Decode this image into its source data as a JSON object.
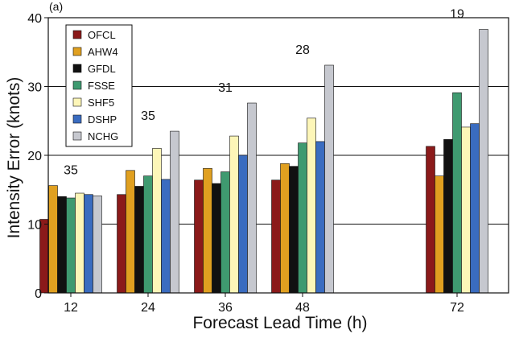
{
  "chart_data": {
    "type": "bar",
    "panel_label": "(a)",
    "title": "",
    "xlabel": "Forecast Lead Time (h)",
    "ylabel": "Intensity Error (knots)",
    "ylim": [
      0,
      40
    ],
    "yticks": [
      0,
      10,
      20,
      30,
      40
    ],
    "grid": "horizontal",
    "legend_position": "top-left",
    "categories": [
      "12",
      "24",
      "36",
      "48",
      "72"
    ],
    "x_positions": [
      12,
      24,
      36,
      48,
      72
    ],
    "xlim": [
      8.5,
      80
    ],
    "case_counts": [
      "35",
      "35",
      "31",
      "28",
      "19"
    ],
    "series": [
      {
        "name": "OFCL",
        "color": "#8b1a1a",
        "values": [
          10.7,
          14.3,
          16.4,
          16.4,
          21.3
        ]
      },
      {
        "name": "AHW4",
        "color": "#e0a020",
        "values": [
          15.6,
          17.8,
          18.1,
          18.8,
          17.0
        ]
      },
      {
        "name": "GFDL",
        "color": "#111111",
        "values": [
          14.0,
          15.5,
          15.9,
          18.4,
          22.3
        ]
      },
      {
        "name": "FSSE",
        "color": "#3f9a70",
        "values": [
          13.8,
          17.0,
          17.6,
          21.8,
          29.1
        ]
      },
      {
        "name": "SHF5",
        "color": "#fdf6b8",
        "values": [
          14.5,
          21.0,
          22.8,
          25.4,
          24.1
        ]
      },
      {
        "name": "DSHP",
        "color": "#3a6cc0",
        "values": [
          14.3,
          16.5,
          20.0,
          22.0,
          24.6
        ]
      },
      {
        "name": "NCHG",
        "color": "#c6c8cf",
        "values": [
          14.1,
          23.5,
          27.6,
          33.1,
          38.3
        ]
      }
    ]
  }
}
